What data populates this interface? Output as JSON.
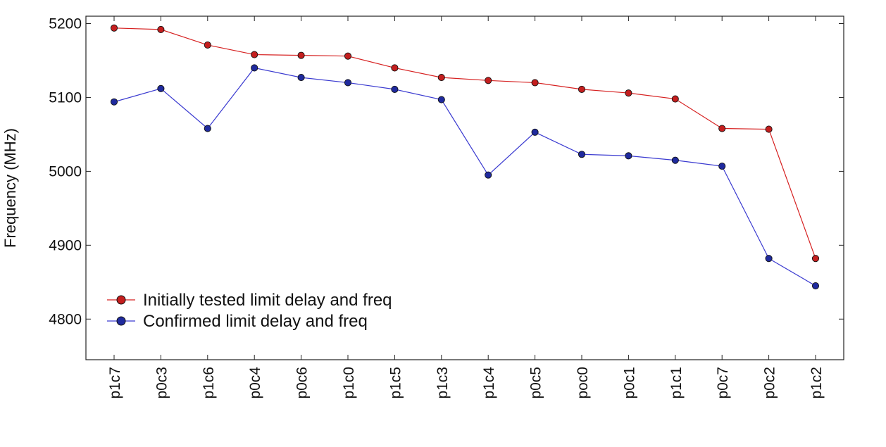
{
  "chart_data": {
    "type": "line",
    "title": "",
    "xlabel": "",
    "ylabel": "Frequency (MHz)",
    "categories": [
      "p1c7",
      "p0c3",
      "p1c6",
      "p0c4",
      "p0c6",
      "p1c0",
      "p1c5",
      "p1c3",
      "p1c4",
      "p0c5",
      "poc0",
      "p0c1",
      "p1c1",
      "p0c7",
      "p0c2",
      "p1c2"
    ],
    "ylim": [
      4745,
      5210
    ],
    "yticks": [
      4800,
      4900,
      5000,
      5100,
      5200
    ],
    "grid": false,
    "legend_position": "lower-left",
    "series": [
      {
        "name": "Initially tested limit delay and freq",
        "color": "#d62020",
        "marker_color": "#c41e1e",
        "values": [
          5194,
          5192,
          5171,
          5158,
          5157,
          5156,
          5140,
          5127,
          5123,
          5120,
          5111,
          5106,
          5098,
          5058,
          5057,
          4882
        ]
      },
      {
        "name": "Confirmed limit delay and freq",
        "color": "#3a3ad0",
        "marker_color": "#1f2a9e",
        "values": [
          5094,
          5112,
          5058,
          5140,
          5127,
          5120,
          5111,
          5097,
          4995,
          5053,
          5023,
          5021,
          5015,
          5007,
          4882,
          4845
        ]
      }
    ]
  }
}
